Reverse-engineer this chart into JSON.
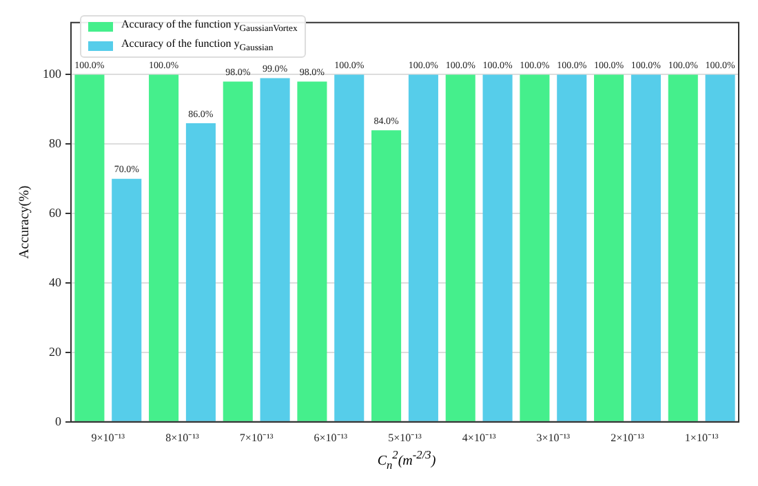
{
  "chart_data": {
    "type": "bar",
    "xlabel": "C$_{n}$$^{2}$(m$^{-2/3}$)",
    "ylabel": "Accuracy(%)",
    "categories": [
      "9×10⁻¹³",
      "8×10⁻¹³",
      "7×10⁻¹³",
      "6×10⁻¹³",
      "5×10⁻¹³",
      "4×10⁻¹³",
      "3×10⁻¹³",
      "2×10⁻¹³",
      "1×10⁻¹³"
    ],
    "series": [
      {
        "name": "Accuracy of the function y$_{GaussianVortex}$",
        "color": "#45ef8c",
        "values": [
          100,
          100,
          98,
          98,
          84,
          100,
          100,
          100,
          100
        ],
        "value_labels": [
          "100.0%",
          "100.0%",
          "98.0%",
          "98.0%",
          "84.0%",
          "100.0%",
          "100.0%",
          "100.0%",
          "100.0%"
        ]
      },
      {
        "name": "Accuracy of the function y$_{Gaussian}$",
        "color": "#56cdea",
        "values": [
          70,
          86,
          99,
          100,
          100,
          100,
          100,
          100,
          100
        ],
        "value_labels": [
          "70.0%",
          "86.0%",
          "99.0%",
          "100.0%",
          "100.0%",
          "100.0%",
          "100.0%",
          "100.0%",
          "100.0%"
        ]
      }
    ],
    "ylim": [
      0,
      115
    ],
    "yticks": [
      0,
      20,
      40,
      60,
      80,
      100
    ],
    "grid": "y",
    "legend": "top left"
  }
}
